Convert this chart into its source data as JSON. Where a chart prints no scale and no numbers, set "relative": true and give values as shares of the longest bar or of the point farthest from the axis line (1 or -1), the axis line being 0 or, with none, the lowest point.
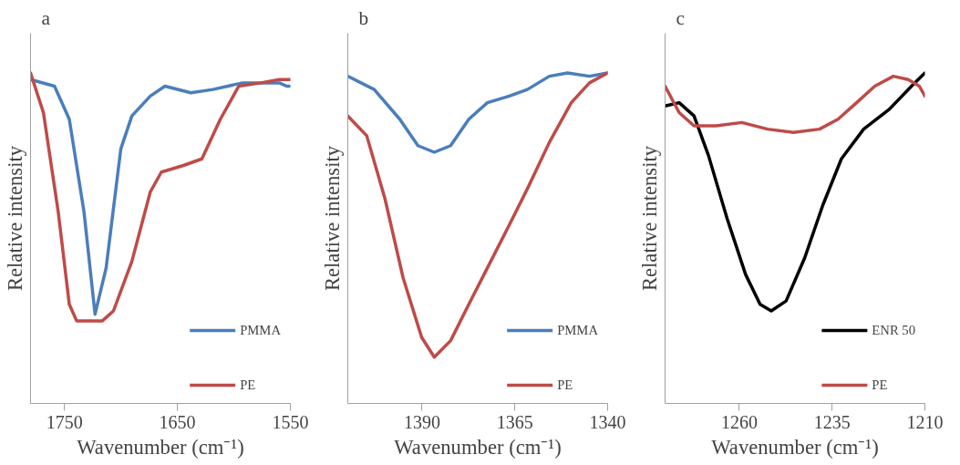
{
  "chart_data": [
    {
      "type": "line",
      "title": "a",
      "xlabel": "Wavenumber (cm⁻¹)",
      "ylabel": "Relative intensity",
      "relative": true,
      "xlim": [
        1780,
        1550
      ],
      "xticks": [
        1750,
        1650,
        1550
      ],
      "legend": "bottom right",
      "series": [
        {
          "name": "PMMA",
          "color": "#4a7ebb",
          "x": [
            1780,
            1758.8,
            1745.7,
            1732.7,
            1722.9,
            1713.1,
            1700.1,
            1690.3,
            1674,
            1661,
            1638.1,
            1618.5,
            1592.4,
            1559.8,
            1553.3,
            1550
          ],
          "values": [
            0.98,
            0.96,
            0.86,
            0.58,
            0.27,
            0.41,
            0.77,
            0.87,
            0.93,
            0.96,
            0.94,
            0.95,
            0.97,
            0.97,
            0.96,
            0.96
          ]
        },
        {
          "name": "PE",
          "color": "#be4b48",
          "x": [
            1780,
            1768.6,
            1755.5,
            1745.7,
            1739.2,
            1716.4,
            1706.6,
            1690.3,
            1674,
            1664.2,
            1644.7,
            1628.3,
            1612,
            1595.7,
            1576.1,
            1559.8,
            1550
          ],
          "values": [
            1.0,
            0.88,
            0.58,
            0.3,
            0.25,
            0.25,
            0.28,
            0.43,
            0.64,
            0.7,
            0.72,
            0.74,
            0.86,
            0.96,
            0.97,
            0.98,
            0.98
          ]
        }
      ]
    },
    {
      "type": "line",
      "title": "b",
      "xlabel": "Wavenumber (cm⁻¹)",
      "ylabel": "Relative intensity",
      "relative": true,
      "xlim": [
        1410,
        1340
      ],
      "xticks": [
        1390,
        1365,
        1340
      ],
      "legend": "bottom right",
      "series": [
        {
          "name": "PMMA",
          "color": "#4a7ebb",
          "x": [
            1410,
            1402.9,
            1396,
            1391.1,
            1386.7,
            1382.3,
            1377.4,
            1372.4,
            1366.5,
            1361.6,
            1355.7,
            1350.8,
            1344.9,
            1340
          ],
          "values": [
            0.99,
            0.95,
            0.86,
            0.78,
            0.76,
            0.78,
            0.86,
            0.91,
            0.93,
            0.95,
            0.99,
            1.0,
            0.99,
            1.0
          ]
        },
        {
          "name": "PE",
          "color": "#be4b48",
          "x": [
            1410,
            1404.9,
            1400,
            1395.1,
            1390.1,
            1386.7,
            1382.3,
            1377.4,
            1372.4,
            1366.5,
            1361.6,
            1355.7,
            1349.8,
            1344.9,
            1340
          ],
          "values": [
            0.87,
            0.81,
            0.62,
            0.38,
            0.2,
            0.14,
            0.19,
            0.3,
            0.41,
            0.54,
            0.65,
            0.79,
            0.91,
            0.97,
            1.0
          ]
        }
      ]
    },
    {
      "type": "line",
      "title": "c",
      "xlabel": "Wavenumber (cm⁻¹)",
      "ylabel": "Relative intensity",
      "relative": true,
      "xlim": [
        1280,
        1210
      ],
      "xticks": [
        1260,
        1235,
        1210
      ],
      "legend": "bottom right",
      "series": [
        {
          "name": "ENR 50",
          "color": "#000000",
          "x": [
            1280,
            1276.2,
            1272.2,
            1268.3,
            1263.3,
            1258.3,
            1254.4,
            1251.4,
            1247.4,
            1242.4,
            1237.5,
            1232.5,
            1226.5,
            1219.6,
            1213.6,
            1210
          ],
          "values": [
            0.9,
            0.91,
            0.87,
            0.75,
            0.56,
            0.39,
            0.3,
            0.28,
            0.31,
            0.44,
            0.6,
            0.74,
            0.83,
            0.89,
            0.96,
            1.0
          ]
        },
        {
          "name": "PE",
          "color": "#be4b48",
          "x": [
            1280,
            1276.2,
            1272.2,
            1266.3,
            1259.3,
            1252.4,
            1245.4,
            1238.4,
            1233.4,
            1228.4,
            1223.5,
            1218.5,
            1214.5,
            1211.5,
            1210
          ],
          "values": [
            0.96,
            0.88,
            0.84,
            0.84,
            0.85,
            0.83,
            0.82,
            0.83,
            0.86,
            0.91,
            0.96,
            0.99,
            0.98,
            0.96,
            0.93
          ]
        }
      ]
    }
  ]
}
